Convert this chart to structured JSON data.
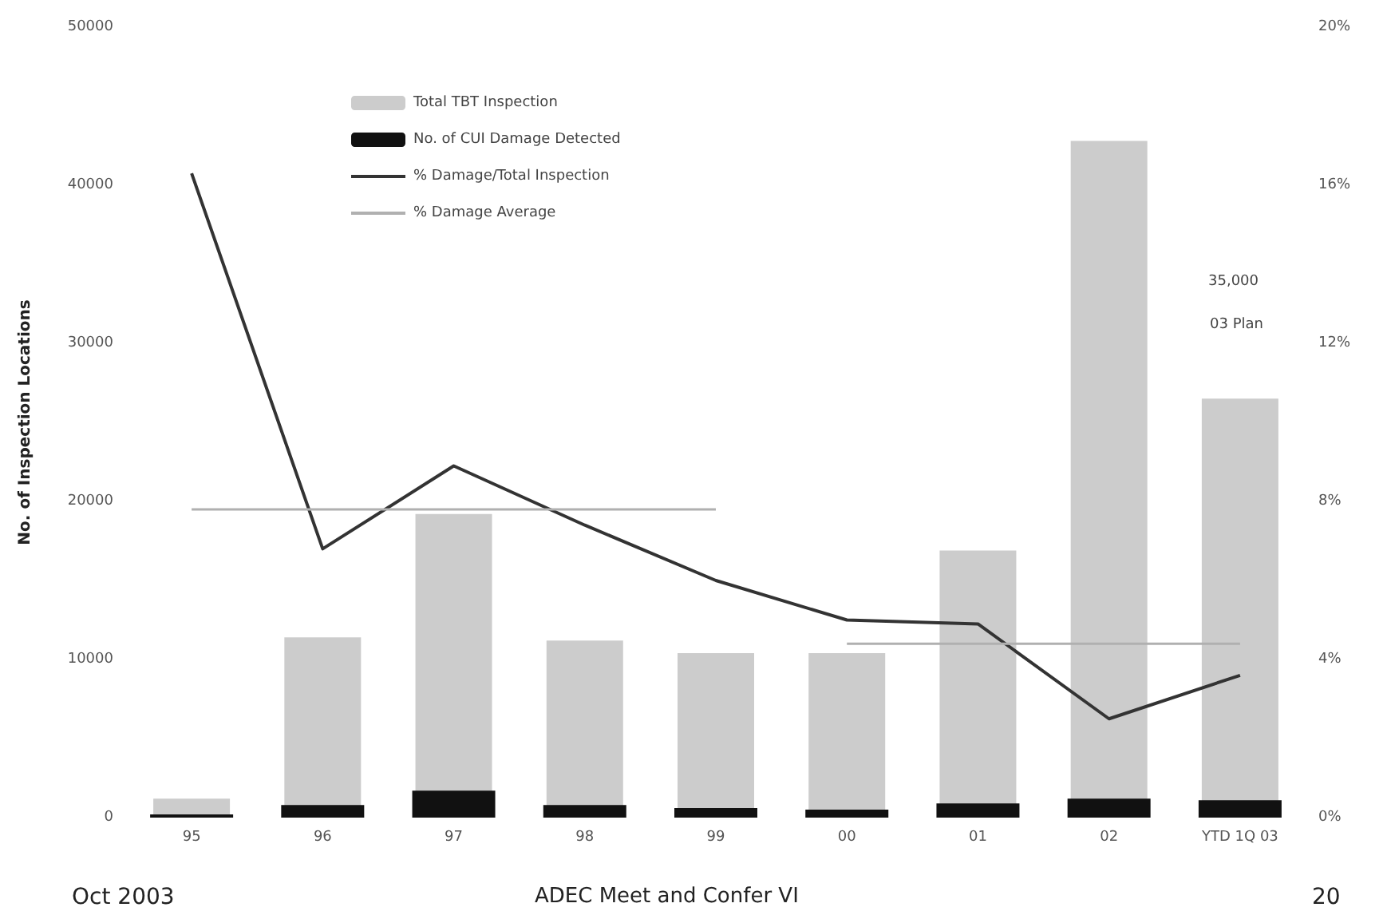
{
  "chart_data": {
    "type": "bar",
    "ylabel": "No. of Inspection Locations",
    "categories": [
      "95",
      "96",
      "97",
      "98",
      "99",
      "00",
      "01",
      "02",
      "YTD 1Q 03"
    ],
    "series": [
      {
        "name": "Total TBT Inspection",
        "color": "#cccccc",
        "values": [
          1200,
          11400,
          19200,
          11200,
          10400,
          10400,
          16900,
          42800,
          26500
        ]
      },
      {
        "name": "No. of CUI Damage Detected",
        "color": "#111111",
        "values": [
          200,
          800,
          1700,
          800,
          600,
          500,
          900,
          1200,
          1100
        ]
      },
      {
        "name": "% Damage/Total Inspection",
        "type": "line",
        "axis": "y2",
        "color": "#333333",
        "values": [
          16.3,
          6.8,
          8.9,
          7.4,
          6.0,
          5.0,
          4.9,
          2.5,
          3.6
        ]
      },
      {
        "name": "% Damage Average",
        "type": "line",
        "axis": "y2",
        "color": "#b0b0b0",
        "values": [
          7.8,
          7.8,
          7.8,
          7.8,
          7.8,
          null,
          null,
          null,
          null
        ]
      },
      {
        "type": "line",
        "axis": "y2",
        "color": "#b0b0b0",
        "values": [
          null,
          null,
          null,
          null,
          null,
          4.4,
          4.4,
          4.4,
          4.4
        ]
      }
    ],
    "ylim": [
      0,
      50000
    ],
    "yticks": [
      0,
      10000,
      20000,
      30000,
      40000,
      50000
    ],
    "y2lim": [
      0,
      20
    ],
    "y2ticks": [
      {
        "value": 0,
        "label": "0%"
      },
      {
        "value": 4,
        "label": "4%"
      },
      {
        "value": 8,
        "label": "8%"
      },
      {
        "value": 12,
        "label": "12%"
      },
      {
        "value": 16,
        "label": "16%"
      },
      {
        "value": 20,
        "label": "20%"
      }
    ],
    "annotations": [
      "35,000",
      "03 Plan",
      "Oct 2003",
      "ADEC Meet and Confer VI",
      "20"
    ],
    "legend": "top left",
    "grid": false,
    "marker": "none"
  }
}
